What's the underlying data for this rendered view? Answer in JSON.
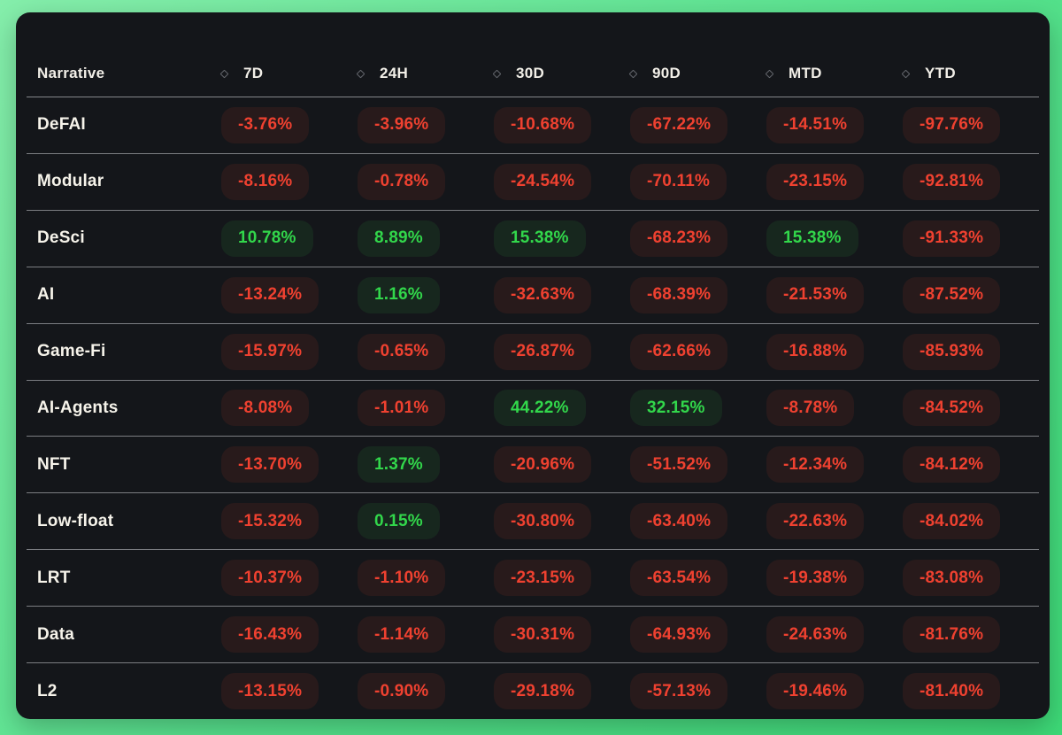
{
  "colors": {
    "positive": "#32d74b",
    "negative": "#ef4130",
    "panel_background": "#14161a",
    "page_gradient_start": "#85eeab",
    "page_gradient_end": "#3dd977",
    "divider": "#7b7d82"
  },
  "table": {
    "columns": [
      {
        "label": "Narrative",
        "sortable": false
      },
      {
        "label": "7D",
        "sortable": true
      },
      {
        "label": "24H",
        "sortable": true
      },
      {
        "label": "30D",
        "sortable": true
      },
      {
        "label": "90D",
        "sortable": true
      },
      {
        "label": "MTD",
        "sortable": true
      },
      {
        "label": "YTD",
        "sortable": true
      }
    ],
    "rows": [
      {
        "name": "DeFAI",
        "values": [
          {
            "text": "-3.76%",
            "dir": "down"
          },
          {
            "text": "-3.96%",
            "dir": "down"
          },
          {
            "text": "-10.68%",
            "dir": "down"
          },
          {
            "text": "-67.22%",
            "dir": "down"
          },
          {
            "text": "-14.51%",
            "dir": "down"
          },
          {
            "text": "-97.76%",
            "dir": "down"
          }
        ]
      },
      {
        "name": "Modular",
        "values": [
          {
            "text": "-8.16%",
            "dir": "down"
          },
          {
            "text": "-0.78%",
            "dir": "down"
          },
          {
            "text": "-24.54%",
            "dir": "down"
          },
          {
            "text": "-70.11%",
            "dir": "down"
          },
          {
            "text": "-23.15%",
            "dir": "down"
          },
          {
            "text": "-92.81%",
            "dir": "down"
          }
        ]
      },
      {
        "name": "DeSci",
        "values": [
          {
            "text": "10.78%",
            "dir": "up"
          },
          {
            "text": "8.89%",
            "dir": "up"
          },
          {
            "text": "15.38%",
            "dir": "up"
          },
          {
            "text": "-68.23%",
            "dir": "down"
          },
          {
            "text": "15.38%",
            "dir": "up"
          },
          {
            "text": "-91.33%",
            "dir": "down"
          }
        ]
      },
      {
        "name": "AI",
        "values": [
          {
            "text": "-13.24%",
            "dir": "down"
          },
          {
            "text": "1.16%",
            "dir": "up"
          },
          {
            "text": "-32.63%",
            "dir": "down"
          },
          {
            "text": "-68.39%",
            "dir": "down"
          },
          {
            "text": "-21.53%",
            "dir": "down"
          },
          {
            "text": "-87.52%",
            "dir": "down"
          }
        ]
      },
      {
        "name": "Game-Fi",
        "values": [
          {
            "text": "-15.97%",
            "dir": "down"
          },
          {
            "text": "-0.65%",
            "dir": "down"
          },
          {
            "text": "-26.87%",
            "dir": "down"
          },
          {
            "text": "-62.66%",
            "dir": "down"
          },
          {
            "text": "-16.88%",
            "dir": "down"
          },
          {
            "text": "-85.93%",
            "dir": "down"
          }
        ]
      },
      {
        "name": "AI-Agents",
        "values": [
          {
            "text": "-8.08%",
            "dir": "down"
          },
          {
            "text": "-1.01%",
            "dir": "down"
          },
          {
            "text": "44.22%",
            "dir": "up"
          },
          {
            "text": "32.15%",
            "dir": "up"
          },
          {
            "text": "-8.78%",
            "dir": "down"
          },
          {
            "text": "-84.52%",
            "dir": "down"
          }
        ]
      },
      {
        "name": "NFT",
        "values": [
          {
            "text": "-13.70%",
            "dir": "down"
          },
          {
            "text": "1.37%",
            "dir": "up"
          },
          {
            "text": "-20.96%",
            "dir": "down"
          },
          {
            "text": "-51.52%",
            "dir": "down"
          },
          {
            "text": "-12.34%",
            "dir": "down"
          },
          {
            "text": "-84.12%",
            "dir": "down"
          }
        ]
      },
      {
        "name": "Low-float",
        "values": [
          {
            "text": "-15.32%",
            "dir": "down"
          },
          {
            "text": "0.15%",
            "dir": "up"
          },
          {
            "text": "-30.80%",
            "dir": "down"
          },
          {
            "text": "-63.40%",
            "dir": "down"
          },
          {
            "text": "-22.63%",
            "dir": "down"
          },
          {
            "text": "-84.02%",
            "dir": "down"
          }
        ]
      },
      {
        "name": "LRT",
        "values": [
          {
            "text": "-10.37%",
            "dir": "down"
          },
          {
            "text": "-1.10%",
            "dir": "down"
          },
          {
            "text": "-23.15%",
            "dir": "down"
          },
          {
            "text": "-63.54%",
            "dir": "down"
          },
          {
            "text": "-19.38%",
            "dir": "down"
          },
          {
            "text": "-83.08%",
            "dir": "down"
          }
        ]
      },
      {
        "name": "Data",
        "values": [
          {
            "text": "-16.43%",
            "dir": "down"
          },
          {
            "text": "-1.14%",
            "dir": "down"
          },
          {
            "text": "-30.31%",
            "dir": "down"
          },
          {
            "text": "-64.93%",
            "dir": "down"
          },
          {
            "text": "-24.63%",
            "dir": "down"
          },
          {
            "text": "-81.76%",
            "dir": "down"
          }
        ]
      },
      {
        "name": "L2",
        "values": [
          {
            "text": "-13.15%",
            "dir": "down"
          },
          {
            "text": "-0.90%",
            "dir": "down"
          },
          {
            "text": "-29.18%",
            "dir": "down"
          },
          {
            "text": "-57.13%",
            "dir": "down"
          },
          {
            "text": "-19.46%",
            "dir": "down"
          },
          {
            "text": "-81.40%",
            "dir": "down"
          }
        ]
      }
    ]
  }
}
